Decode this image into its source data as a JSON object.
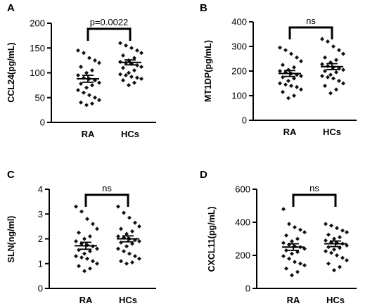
{
  "chart_data": [
    {
      "type": "scatter",
      "panel_label": "A",
      "ylabel": "CCL24(pg/mL)",
      "categories": [
        "RA",
        "HCs"
      ],
      "ylim": [
        0,
        200
      ],
      "yticks": [
        0,
        50,
        100,
        150,
        200
      ],
      "annotation": "p=0.0022",
      "series": [
        {
          "category": "RA",
          "mean": 88,
          "sem": 7,
          "values": [
            145,
            140,
            130,
            125,
            120,
            112,
            105,
            100,
            95,
            90,
            88,
            85,
            80,
            78,
            75,
            70,
            65,
            60,
            55,
            50,
            45,
            40,
            38,
            35
          ]
        },
        {
          "category": "HCs",
          "mean": 121,
          "sem": 5,
          "values": [
            160,
            155,
            150,
            145,
            140,
            135,
            130,
            125,
            122,
            120,
            118,
            115,
            112,
            110,
            105,
            100,
            97,
            95,
            92,
            90,
            88,
            85,
            80,
            75
          ]
        }
      ]
    },
    {
      "type": "scatter",
      "panel_label": "B",
      "ylabel": "MT1DP(pg/mL)",
      "categories": [
        "RA",
        "HCs"
      ],
      "ylim": [
        0,
        400
      ],
      "yticks": [
        0,
        100,
        200,
        300,
        400
      ],
      "annotation": "ns",
      "series": [
        {
          "category": "RA",
          "mean": 190,
          "sem": 12,
          "values": [
            295,
            285,
            270,
            255,
            240,
            225,
            215,
            205,
            200,
            195,
            190,
            185,
            180,
            175,
            170,
            160,
            150,
            145,
            140,
            135,
            125,
            115,
            100,
            90
          ]
        },
        {
          "category": "HCs",
          "mean": 218,
          "sem": 12,
          "values": [
            330,
            320,
            300,
            285,
            270,
            255,
            245,
            235,
            228,
            220,
            215,
            210,
            205,
            200,
            195,
            185,
            180,
            175,
            170,
            160,
            150,
            140,
            125,
            110
          ]
        }
      ]
    },
    {
      "type": "scatter",
      "panel_label": "C",
      "ylabel": "SLN(ng/ml)",
      "categories": [
        "RA",
        "HCs"
      ],
      "ylim": [
        0,
        4
      ],
      "yticks": [
        0,
        1,
        2,
        3,
        4
      ],
      "annotation": "ns",
      "series": [
        {
          "category": "RA",
          "mean": 1.72,
          "sem": 0.14,
          "values": [
            3.3,
            3.1,
            2.8,
            2.6,
            2.4,
            2.25,
            2.1,
            2.0,
            1.9,
            1.8,
            1.75,
            1.7,
            1.6,
            1.55,
            1.5,
            1.4,
            1.3,
            1.25,
            1.2,
            1.1,
            1.0,
            0.9,
            0.8,
            0.7
          ]
        },
        {
          "category": "HCs",
          "mean": 2.0,
          "sem": 0.12,
          "values": [
            3.3,
            3.05,
            2.85,
            2.65,
            2.5,
            2.4,
            2.3,
            2.2,
            2.1,
            2.05,
            2.0,
            1.95,
            1.9,
            1.85,
            1.8,
            1.7,
            1.6,
            1.5,
            1.4,
            1.3,
            1.2,
            1.1,
            1.05,
            1.0
          ]
        }
      ]
    },
    {
      "type": "scatter",
      "panel_label": "D",
      "ylabel": "CXCL11(pg/mL)",
      "categories": [
        "RA",
        "HCs"
      ],
      "ylim": [
        0,
        600
      ],
      "yticks": [
        0,
        200,
        400,
        600
      ],
      "annotation": "ns",
      "series": [
        {
          "category": "RA",
          "mean": 250,
          "sem": 20,
          "values": [
            480,
            390,
            370,
            355,
            340,
            320,
            300,
            285,
            275,
            265,
            255,
            250,
            240,
            230,
            220,
            210,
            195,
            180,
            160,
            150,
            140,
            120,
            100,
            80
          ]
        },
        {
          "category": "HCs",
          "mean": 270,
          "sem": 17,
          "values": [
            390,
            380,
            365,
            350,
            340,
            325,
            310,
            300,
            290,
            280,
            275,
            270,
            260,
            250,
            245,
            235,
            225,
            215,
            200,
            185,
            170,
            150,
            130,
            110
          ]
        }
      ]
    }
  ]
}
